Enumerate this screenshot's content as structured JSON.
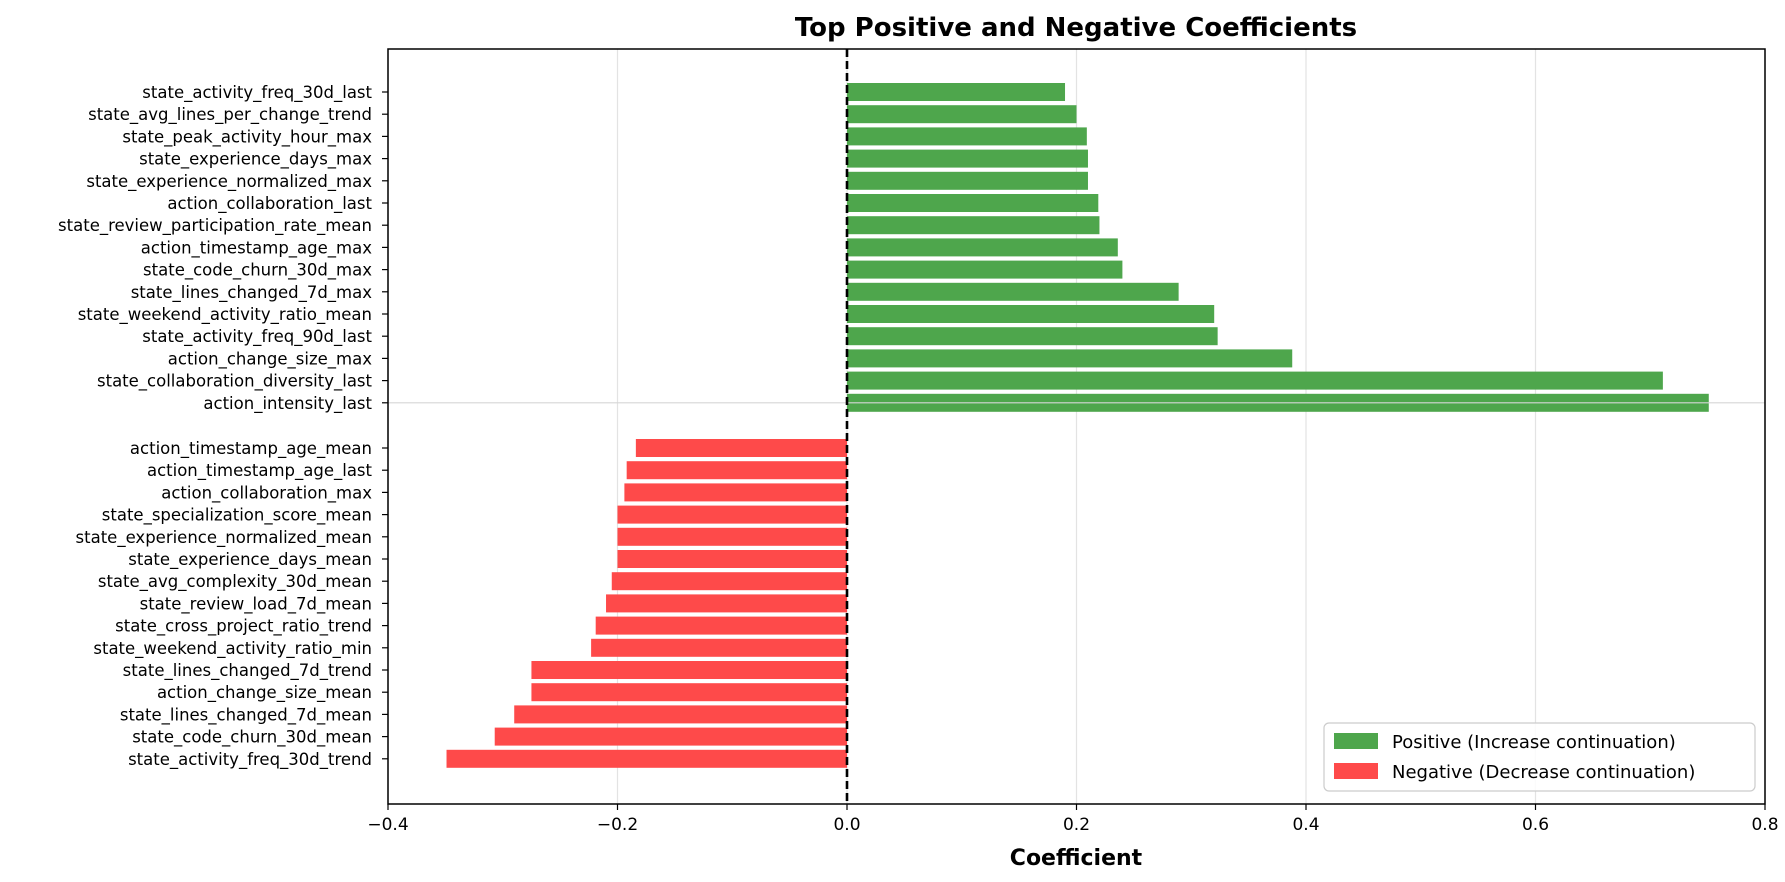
{
  "chart_data": {
    "type": "bar",
    "orientation": "horizontal",
    "title": "Top Positive and Negative Coefficients",
    "xlabel": "Coefficient",
    "ylabel": "",
    "xlim": [
      -0.4,
      0.8
    ],
    "xticks": [
      -0.4,
      -0.2,
      0.0,
      0.2,
      0.4,
      0.6,
      0.8
    ],
    "xtick_labels": [
      "−0.4",
      "−0.2",
      "0.0",
      "0.2",
      "0.4",
      "0.6",
      "0.8"
    ],
    "grid": "vertical gridlines at x ticks",
    "reference_line": {
      "x": 0,
      "style": "dashed",
      "color": "#000000"
    },
    "legend_position": "lower right",
    "series": [
      {
        "name": "Positive (Increase continuation)",
        "color": "#4ea64c",
        "categories": [
          "state_activity_freq_30d_last",
          "state_avg_lines_per_change_trend",
          "state_peak_activity_hour_max",
          "state_experience_days_max",
          "state_experience_normalized_max",
          "action_collaboration_last",
          "state_review_participation_rate_mean",
          "action_timestamp_age_max",
          "state_code_churn_30d_max",
          "state_lines_changed_7d_max",
          "state_weekend_activity_ratio_mean",
          "state_activity_freq_90d_last",
          "action_change_size_max",
          "state_collaboration_diversity_last",
          "action_intensity_last"
        ],
        "values": [
          0.19,
          0.2,
          0.209,
          0.21,
          0.21,
          0.219,
          0.22,
          0.236,
          0.24,
          0.289,
          0.32,
          0.323,
          0.388,
          0.711,
          0.751
        ]
      },
      {
        "name": "Negative (Decrease continuation)",
        "color": "#fe4a4a",
        "categories": [
          "action_timestamp_age_mean",
          "action_timestamp_age_last",
          "action_collaboration_max",
          "state_specialization_score_mean",
          "state_experience_normalized_mean",
          "state_experience_days_mean",
          "state_avg_complexity_30d_mean",
          "state_review_load_7d_mean",
          "state_cross_project_ratio_trend",
          "state_weekend_activity_ratio_min",
          "state_lines_changed_7d_trend",
          "action_change_size_mean",
          "state_lines_changed_7d_mean",
          "state_code_churn_30d_mean",
          "state_activity_freq_30d_trend"
        ],
        "values": [
          -0.184,
          -0.192,
          -0.194,
          -0.2,
          -0.2,
          -0.2,
          -0.205,
          -0.21,
          -0.219,
          -0.223,
          -0.275,
          -0.275,
          -0.29,
          -0.307,
          -0.349
        ]
      }
    ]
  }
}
